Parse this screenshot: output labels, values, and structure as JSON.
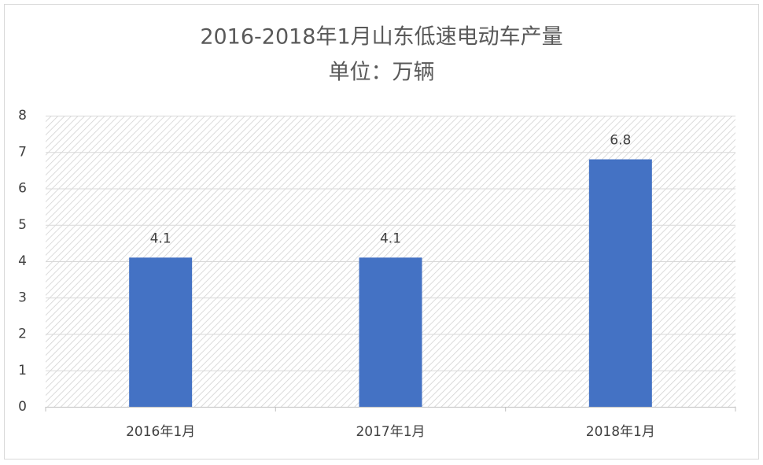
{
  "chart_data": {
    "type": "bar",
    "title": "2016-2018年1月山东低速电动车产量",
    "subtitle": "单位：万辆",
    "categories": [
      "2016年1月",
      "2017年1月",
      "2018年1月"
    ],
    "values": [
      4.1,
      4.1,
      6.8
    ],
    "color": "#4472c4",
    "ylim": [
      0,
      8
    ],
    "yticks": [
      0,
      1,
      2,
      3,
      4,
      5,
      6,
      7,
      8
    ],
    "grid": true
  }
}
